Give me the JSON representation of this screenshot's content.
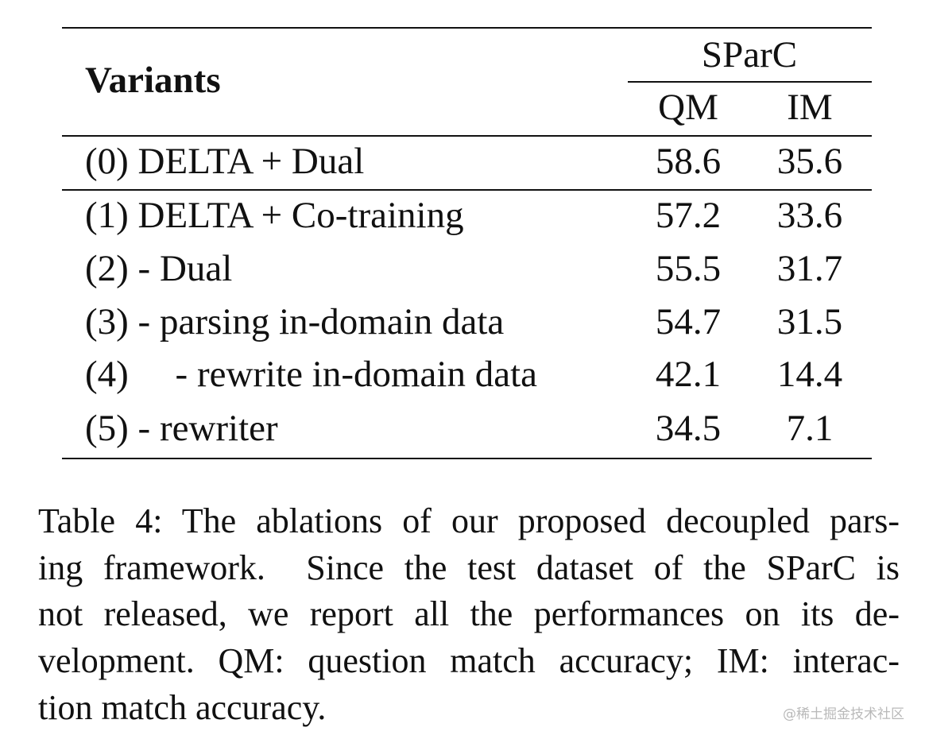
{
  "table": {
    "header": {
      "variants": "Variants",
      "group": "SParC",
      "columns": [
        "QM",
        "IM"
      ]
    },
    "rows": [
      [
        "(0) DELTA + Dual",
        58.6,
        35.6
      ],
      [
        "(1) DELTA + Co-training",
        57.2,
        33.6
      ],
      [
        "(2) - Dual",
        55.5,
        31.7
      ],
      [
        "(3) - parsing in-domain data",
        54.7,
        31.5
      ],
      [
        "(4)     - rewrite in-domain data",
        42.1,
        14.4
      ],
      [
        "(5) - rewriter",
        34.5,
        7.1
      ]
    ]
  },
  "caption": {
    "lines": [
      "Table 4: The ablations of our proposed decoupled pars-",
      "ing framework.  Since the test dataset of the SParC is",
      "not released, we report all the performances on its de-",
      "velopment. QM: question match accuracy; IM: interac-",
      "tion match accuracy."
    ]
  },
  "watermark": "@稀土掘金技术社区"
}
